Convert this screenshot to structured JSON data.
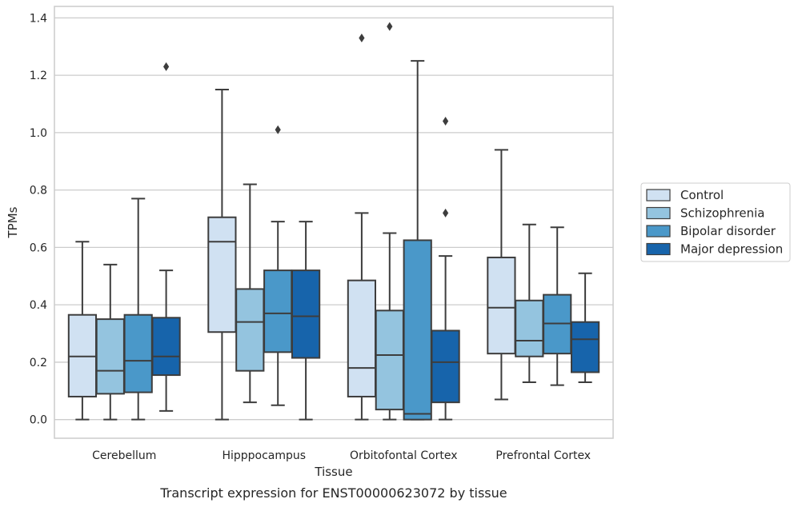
{
  "caption": "Transcript expression for ENST00000623072 by tissue",
  "chart_data": {
    "type": "box",
    "xlabel": "Tissue",
    "ylabel": "TPMs",
    "ylim": [
      -0.065,
      1.44
    ],
    "yticks": [
      "0.0",
      "0.2",
      "0.4",
      "0.6",
      "0.8",
      "1.0",
      "1.2",
      "1.4"
    ],
    "ytick_values": [
      0.0,
      0.2,
      0.4,
      0.6,
      0.8,
      1.0,
      1.2,
      1.4
    ],
    "grid": "horizontal",
    "legend_position": "right, outside plot",
    "categories": [
      "Cerebellum",
      "Hipppocampus",
      "Orbitofontal Cortex",
      "Prefrontal Cortex"
    ],
    "series": [
      {
        "name": "Control",
        "color": "#d0e1f2",
        "boxes": [
          {
            "min": 0.0,
            "q1": 0.08,
            "median": 0.22,
            "q3": 0.365,
            "max": 0.62,
            "outliers": []
          },
          {
            "min": 0.0,
            "q1": 0.305,
            "median": 0.62,
            "q3": 0.705,
            "max": 1.15,
            "outliers": []
          },
          {
            "min": 0.0,
            "q1": 0.08,
            "median": 0.18,
            "q3": 0.485,
            "max": 0.72,
            "outliers": [
              1.33
            ]
          },
          {
            "min": 0.07,
            "q1": 0.23,
            "median": 0.39,
            "q3": 0.565,
            "max": 0.94,
            "outliers": []
          }
        ]
      },
      {
        "name": "Schizophrenia",
        "color": "#94c4df",
        "boxes": [
          {
            "min": 0.0,
            "q1": 0.09,
            "median": 0.17,
            "q3": 0.35,
            "max": 0.54,
            "outliers": []
          },
          {
            "min": 0.06,
            "q1": 0.17,
            "median": 0.34,
            "q3": 0.455,
            "max": 0.82,
            "outliers": []
          },
          {
            "min": 0.0,
            "q1": 0.035,
            "median": 0.225,
            "q3": 0.38,
            "max": 0.65,
            "outliers": [
              1.37
            ]
          },
          {
            "min": 0.13,
            "q1": 0.22,
            "median": 0.275,
            "q3": 0.415,
            "max": 0.68,
            "outliers": []
          }
        ]
      },
      {
        "name": "Bipolar disorder",
        "color": "#4a98c9",
        "boxes": [
          {
            "min": 0.0,
            "q1": 0.095,
            "median": 0.205,
            "q3": 0.365,
            "max": 0.77,
            "outliers": []
          },
          {
            "min": 0.05,
            "q1": 0.235,
            "median": 0.37,
            "q3": 0.52,
            "max": 0.69,
            "outliers": [
              1.01
            ]
          },
          {
            "min": 0.0,
            "q1": 0.0,
            "median": 0.02,
            "q3": 0.625,
            "max": 1.25,
            "outliers": []
          },
          {
            "min": 0.12,
            "q1": 0.23,
            "median": 0.335,
            "q3": 0.435,
            "max": 0.67,
            "outliers": []
          }
        ]
      },
      {
        "name": "Major depression",
        "color": "#1764ab",
        "boxes": [
          {
            "min": 0.03,
            "q1": 0.155,
            "median": 0.22,
            "q3": 0.355,
            "max": 0.52,
            "outliers": [
              1.23
            ]
          },
          {
            "min": 0.0,
            "q1": 0.215,
            "median": 0.36,
            "q3": 0.52,
            "max": 0.69,
            "outliers": []
          },
          {
            "min": 0.0,
            "q1": 0.06,
            "median": 0.2,
            "q3": 0.31,
            "max": 0.57,
            "outliers": [
              0.72,
              1.04
            ]
          },
          {
            "min": 0.13,
            "q1": 0.165,
            "median": 0.28,
            "q3": 0.34,
            "max": 0.51,
            "outliers": []
          }
        ]
      }
    ]
  }
}
